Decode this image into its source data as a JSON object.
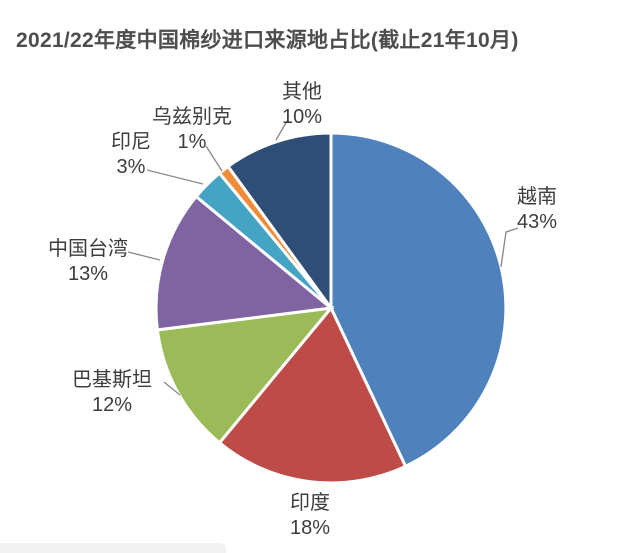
{
  "chart_data": {
    "type": "pie",
    "title": "2021/22年度中国棉纱进口来源地占比(截止21年10月)",
    "title_color": "#4d4d4d",
    "legend_position": "none",
    "label_position": "outside-with-leader-lines",
    "start_angle_deg": 0,
    "direction": "clockwise",
    "unit": "%",
    "slices": [
      {
        "key": "vietnam",
        "label": "越南",
        "value_pct": 43,
        "color": "#4f81bd"
      },
      {
        "key": "india",
        "label": "印度",
        "value_pct": 18,
        "color": "#be4b48"
      },
      {
        "key": "pakistan",
        "label": "巴基斯坦",
        "value_pct": 12,
        "color": "#9bbb59"
      },
      {
        "key": "taiwan-china",
        "label": "中国台湾",
        "value_pct": 13,
        "color": "#8064a2"
      },
      {
        "key": "indonesia",
        "label": "印尼",
        "value_pct": 3,
        "color": "#45a3c4"
      },
      {
        "key": "uzbekistan",
        "label": "乌兹别克",
        "value_pct": 1,
        "color": "#ee8c3a"
      },
      {
        "key": "others",
        "label": "其他",
        "value_pct": 10,
        "color": "#2e4d77"
      }
    ]
  }
}
